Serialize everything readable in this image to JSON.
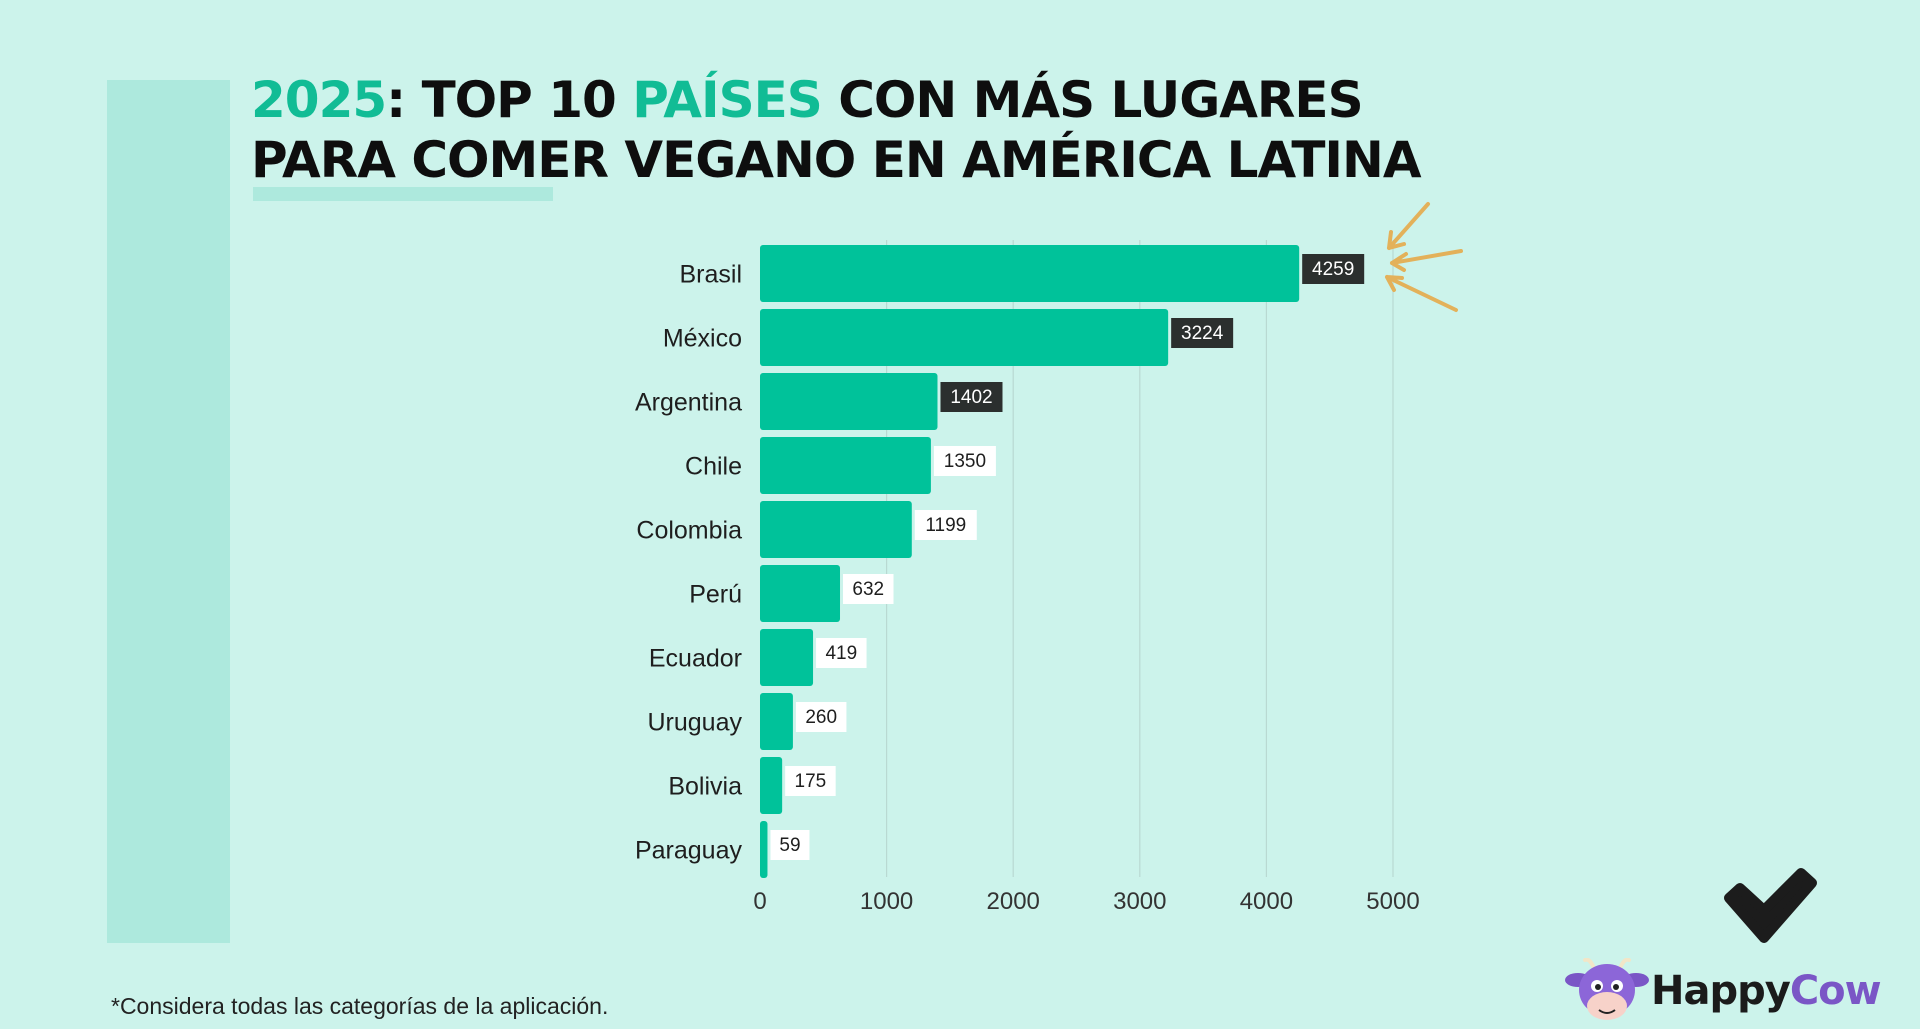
{
  "title": {
    "part1_accent": "2025",
    "part2": ": TOP 10 ",
    "part3_accent": "PAÍSES",
    "part4": " CON MÁS LUGARES",
    "line2": "PARA COMER VEGANO EN AMÉRICA LATINA"
  },
  "footnote": "*Considera todas las categorías de la aplicación.",
  "logo": {
    "word1": "Happy",
    "word2": "Cow"
  },
  "colors": {
    "background": "#ccf3eb",
    "bar": "#00c29a",
    "accent_text": "#11bc95",
    "dark_label": "#2b2f2e",
    "arrow": "#e3b15a",
    "check": "#1c1c1c"
  },
  "chart_data": {
    "type": "bar",
    "orientation": "horizontal",
    "categories": [
      "Brasil",
      "México",
      "Argentina",
      "Chile",
      "Colombia",
      "Perú",
      "Ecuador",
      "Uruguay",
      "Bolivia",
      "Paraguay"
    ],
    "values": [
      4259,
      3224,
      1402,
      1350,
      1199,
      632,
      419,
      260,
      175,
      59
    ],
    "data_labels": [
      "4259",
      "3224",
      "1402",
      "1350",
      "1199",
      "632",
      "419",
      "260",
      "175",
      "59"
    ],
    "highlighted": [
      true,
      true,
      true,
      false,
      false,
      false,
      false,
      false,
      false,
      false
    ],
    "xticks": [
      0,
      1000,
      2000,
      3000,
      4000,
      5000
    ],
    "xlim": [
      0,
      5000
    ],
    "grid": true,
    "title": "",
    "xlabel": "",
    "ylabel": ""
  }
}
